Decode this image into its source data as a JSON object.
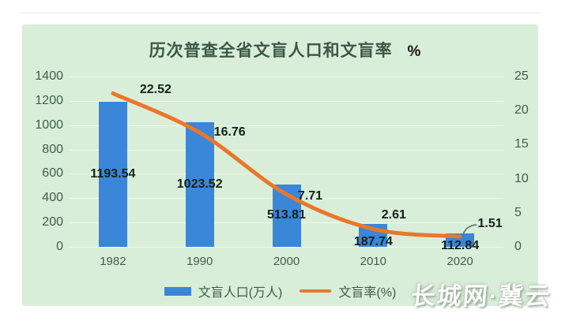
{
  "title": {
    "main": "历次普查全省文盲人口和文盲率",
    "unit_suffix": "%"
  },
  "chart_data": {
    "type": "bar",
    "combo": "bar+line",
    "title": "历次普查全省文盲人口和文盲率 %",
    "categories": [
      "1982",
      "1990",
      "2000",
      "2010",
      "2020"
    ],
    "series": [
      {
        "name": "文盲人口(万人)",
        "type": "bar",
        "axis": "left",
        "values": [
          1193.54,
          1023.52,
          513.81,
          187.74,
          112.84
        ]
      },
      {
        "name": "文盲率(%)",
        "type": "line",
        "axis": "right",
        "values": [
          22.52,
          16.76,
          7.71,
          2.61,
          1.51
        ]
      }
    ],
    "left_axis": {
      "range": [
        0,
        1400
      ],
      "tick_labels": [
        "0",
        "200",
        "400",
        "600",
        "800",
        "1000",
        "1200",
        "1400"
      ]
    },
    "right_axis": {
      "range": [
        0,
        25
      ],
      "tick_labels": [
        "0",
        "5",
        "10",
        "15",
        "20",
        "25"
      ]
    },
    "grid": true,
    "legend_position": "bottom"
  },
  "legend": {
    "bar_label": "文盲人口(万人)",
    "line_label": "文盲率(%)"
  },
  "watermark": "长城网·冀云",
  "colors": {
    "bar": "#3a86d8",
    "line": "#ea772b",
    "panel_background": "#d9eed8",
    "axis_text": "#3f5d4e",
    "label_text": "#132019",
    "leader_line": "#5a6b60"
  }
}
